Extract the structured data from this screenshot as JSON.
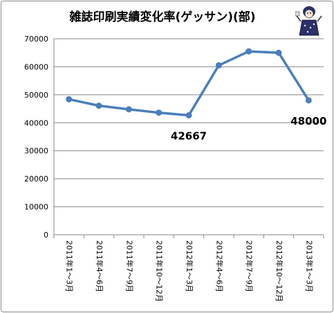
{
  "chart_data": {
    "type": "line",
    "title": "雑誌印刷実績変化率(ゲッサン)(部)",
    "xlabel": "",
    "ylabel": "",
    "categories": [
      "2011年1～3月",
      "2011年4～6月",
      "2011年7～9月",
      "2011年10～12月",
      "2012年1～3月",
      "2012年4～6月",
      "2012年7～9月",
      "2012年10～12月",
      "2013年1～3月"
    ],
    "series": [
      {
        "values": [
          48400,
          46100,
          44800,
          43600,
          42667,
          60500,
          65500,
          65000,
          48000
        ]
      }
    ],
    "ylim": [
      0,
      70000
    ],
    "yticks": [
      "0",
      "10000",
      "20000",
      "30000",
      "40000",
      "50000",
      "60000",
      "70000"
    ],
    "data_labels": [
      {
        "index": 4,
        "text": "42667"
      },
      {
        "index": 8,
        "text": "48000"
      }
    ],
    "grid": true,
    "legend": "none",
    "colors": {
      "line": "#4a7ebb",
      "grid": "#878787",
      "axis": "#878787"
    }
  }
}
